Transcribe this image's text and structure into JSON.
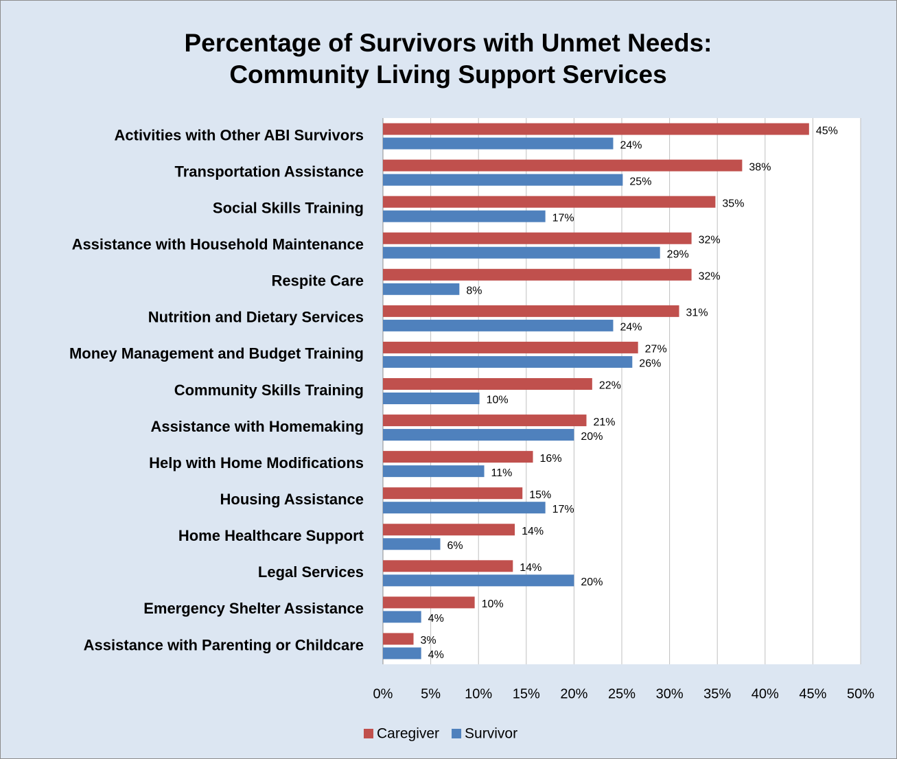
{
  "chart_data": {
    "type": "hbar",
    "title": [
      "Percentage of Survivors with Unmet Needs:",
      "Community Living Support Services"
    ],
    "categories": [
      "Activities with Other ABI Survivors",
      "Transportation Assistance",
      "Social Skills Training",
      "Assistance with Household Maintenance",
      "Respite Care",
      "Nutrition and Dietary Services",
      "Money Management and Budget Training",
      "Community Skills Training",
      "Assistance with Homemaking",
      "Help with Home Modifications",
      "Housing Assistance",
      "Home Healthcare Support",
      "Legal Services",
      "Emergency Shelter Assistance",
      "Assistance with Parenting or Childcare"
    ],
    "series": [
      {
        "name": "Caregiver",
        "color": "#c0504d",
        "values": [
          44.6,
          37.6,
          34.8,
          32.3,
          32.3,
          31.0,
          26.7,
          21.9,
          21.3,
          15.7,
          14.6,
          13.8,
          13.6,
          9.6,
          3.2
        ],
        "value_labels": [
          "45%",
          "38%",
          "35%",
          "32%",
          "32%",
          "31%",
          "27%",
          "22%",
          "21%",
          "16%",
          "15%",
          "14%",
          "14%",
          "10%",
          "3%"
        ]
      },
      {
        "name": "Survivor",
        "color": "#4f81bd",
        "values": [
          24.1,
          25.1,
          17.0,
          29.0,
          8.0,
          24.1,
          26.1,
          10.1,
          20.0,
          10.6,
          17.0,
          6.0,
          20.0,
          4.0,
          4.0
        ],
        "value_labels": [
          "24%",
          "25%",
          "17%",
          "29%",
          "8%",
          "24%",
          "26%",
          "10%",
          "20%",
          "11%",
          "17%",
          "6%",
          "20%",
          "4%",
          "4%"
        ]
      }
    ],
    "xlim": [
      0,
      50
    ],
    "xticks": [
      {
        "value": 0,
        "label": "0%"
      },
      {
        "value": 5,
        "label": "5%"
      },
      {
        "value": 10,
        "label": "10%"
      },
      {
        "value": 15,
        "label": "15%"
      },
      {
        "value": 20,
        "label": "20%"
      },
      {
        "value": 25,
        "label": "25%"
      },
      {
        "value": 30,
        "label": "30%"
      },
      {
        "value": 35,
        "label": "35%"
      },
      {
        "value": 40,
        "label": "40%"
      },
      {
        "value": 45,
        "label": "45%"
      },
      {
        "value": 50,
        "label": "50%"
      }
    ],
    "grid": true,
    "legend": "bottom"
  }
}
